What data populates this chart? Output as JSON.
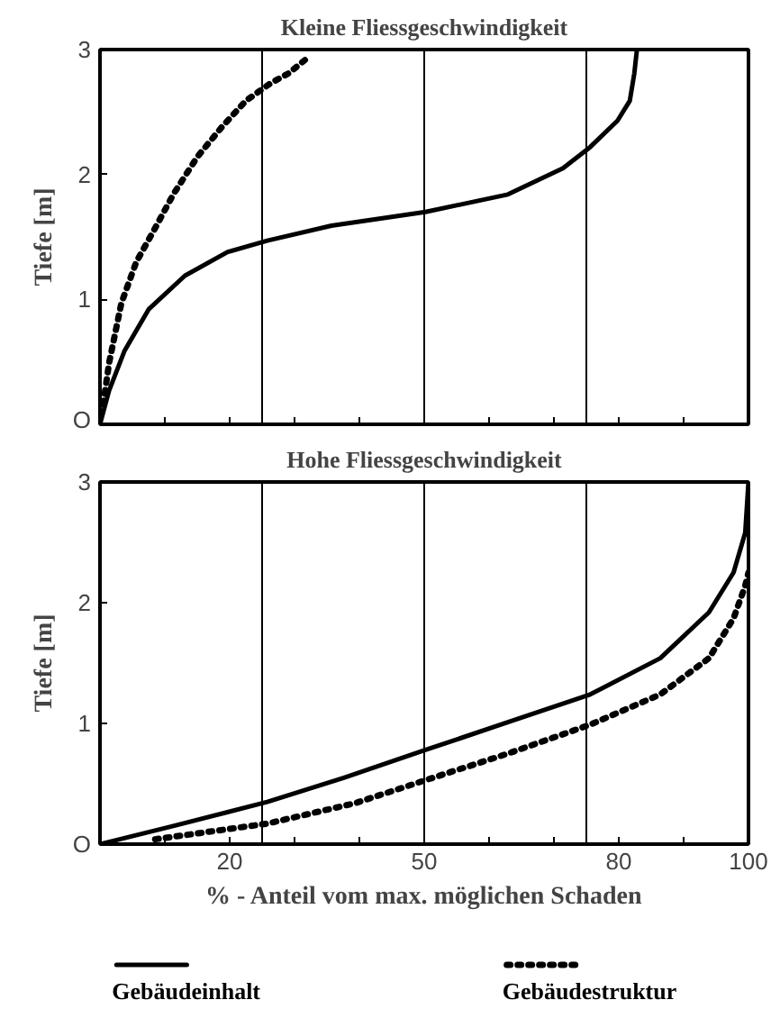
{
  "chart_data": [
    {
      "type": "line",
      "title": "Kleine Fliessgeschwindigkeit",
      "ylabel": "Tiefe [m]",
      "xlim": [
        0,
        100
      ],
      "ylim": [
        0,
        3
      ],
      "xticks": [
        {
          "value": 0,
          "label": null
        },
        {
          "value": 10,
          "label": null
        },
        {
          "value": 20,
          "label": null
        },
        {
          "value": 30,
          "label": null
        },
        {
          "value": 40,
          "label": null
        },
        {
          "value": 50,
          "label": null
        },
        {
          "value": 60,
          "label": null
        },
        {
          "value": 70,
          "label": null
        },
        {
          "value": 80,
          "label": null
        },
        {
          "value": 90,
          "label": null
        },
        {
          "value": 100,
          "label": null
        }
      ],
      "yticks": [
        {
          "value": 0,
          "label": "O"
        },
        1,
        2,
        3
      ],
      "tick_labels": "y",
      "grid": false,
      "marker": "none",
      "ref_lines": [
        {
          "axis": "x",
          "value": 25,
          "label": null
        },
        {
          "axis": "x",
          "value": 50,
          "label": null
        },
        {
          "axis": "x",
          "value": 75,
          "label": null
        }
      ],
      "series": [
        {
          "color": "#000000",
          "line_style": "solid",
          "x": [
            0,
            1.4,
            3.8,
            7.5,
            13.1,
            19.7,
            25.8,
            35.7,
            50.2,
            62.9,
            71.4,
            75.6,
            79.8,
            81.7,
            82.4,
            82.8
          ],
          "values": [
            0,
            0.27,
            0.59,
            0.92,
            1.19,
            1.38,
            1.47,
            1.59,
            1.7,
            1.84,
            2.05,
            2.22,
            2.43,
            2.59,
            2.81,
            3.0
          ]
        },
        {
          "color": "#000000",
          "line_style": "dotted",
          "x": [
            0.5,
            1.4,
            3.3,
            5.6,
            8.5,
            11.3,
            15.0,
            18.8,
            22.5,
            26.3,
            29.1,
            32.4
          ],
          "values": [
            0.16,
            0.49,
            0.97,
            1.3,
            1.57,
            1.84,
            2.14,
            2.38,
            2.59,
            2.73,
            2.81,
            2.95
          ]
        }
      ]
    },
    {
      "type": "line",
      "title": "Hohe Fliessgeschwindigkeit",
      "ylabel": "Tiefe [m]",
      "xlabel": "% - Anteil vom max. möglichen Schaden",
      "xlim": [
        0,
        100
      ],
      "ylim": [
        0,
        3
      ],
      "xticks": [
        {
          "value": 0,
          "label": null
        },
        {
          "value": 10,
          "label": null
        },
        20,
        {
          "value": 30,
          "label": null
        },
        {
          "value": 40,
          "label": null
        },
        50,
        {
          "value": 60,
          "label": null
        },
        {
          "value": 70,
          "label": null
        },
        80,
        {
          "value": 90,
          "label": null
        },
        100
      ],
      "yticks": [
        {
          "value": 0,
          "label": "O"
        },
        1,
        2,
        3
      ],
      "grid": false,
      "marker": "none",
      "legend": "bottom",
      "ref_lines": [
        {
          "axis": "x",
          "value": 25,
          "label": null
        },
        {
          "axis": "x",
          "value": 50,
          "label": null
        },
        {
          "axis": "x",
          "value": 75,
          "label": null
        }
      ],
      "series": [
        {
          "name": "Gebäudeinhalt",
          "color": "#000000",
          "line_style": "solid",
          "x": [
            0,
            11.3,
            25.8,
            37.6,
            50.2,
            62.9,
            75.6,
            86.4,
            93.9,
            97.7,
            99.5,
            100
          ],
          "values": [
            0,
            0.15,
            0.35,
            0.55,
            0.78,
            1.01,
            1.24,
            1.54,
            1.92,
            2.25,
            2.58,
            3.0
          ]
        },
        {
          "name": "Gebäudestruktur",
          "color": "#000000",
          "line_style": "dotted",
          "x": [
            8.5,
            25.8,
            39.4,
            50.2,
            62.9,
            75.6,
            86.4,
            93.9,
            97.7,
            99.5,
            100
          ],
          "values": [
            0.04,
            0.17,
            0.34,
            0.53,
            0.75,
            0.99,
            1.24,
            1.54,
            1.87,
            2.14,
            2.25
          ]
        }
      ]
    }
  ]
}
